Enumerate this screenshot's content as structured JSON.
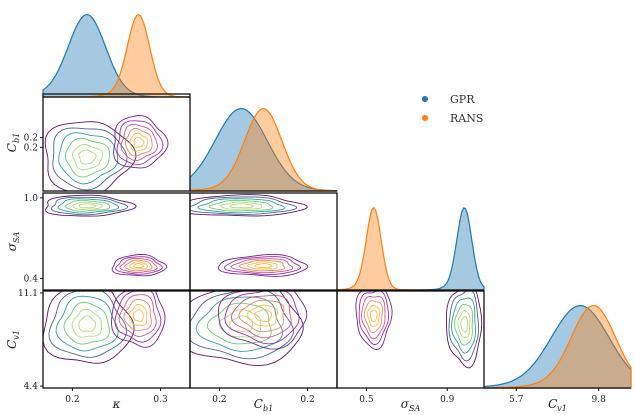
{
  "chart_data": {
    "type": "corner",
    "parameters": [
      {
        "key": "kappa",
        "label": "κ",
        "sub": "",
        "ticks": [
          "0.2",
          "0.3"
        ],
        "range": [
          0.15,
          0.35
        ]
      },
      {
        "key": "cb1",
        "label": "C",
        "sub": "b1",
        "ticks": [
          "0.2",
          "0.2"
        ],
        "range": [
          0.1,
          0.3
        ]
      },
      {
        "key": "sigma",
        "label": "σ",
        "sub": "SA",
        "ticks": [
          "0.5",
          "0.9"
        ],
        "range": [
          0.4,
          1.0
        ]
      },
      {
        "key": "cv1",
        "label": "C",
        "sub": "v1",
        "ticks": [
          "5.7",
          "9.8"
        ],
        "range": [
          4.4,
          11.1
        ]
      }
    ],
    "y_ticks": {
      "cb1": [
        "0.2",
        "0.2"
      ],
      "sigma": [
        "1.0",
        "0.4"
      ],
      "cv1": [
        "11.1",
        "4.4"
      ]
    },
    "series": [
      {
        "name": "GPR",
        "color": "#1f77b4",
        "means": {
          "kappa": 0.21,
          "cb1": 0.17,
          "sigma": 0.92,
          "cv1": 8.8
        },
        "stds": {
          "kappa": 0.025,
          "cb1": 0.035,
          "sigma": 0.03,
          "cv1": 1.3
        }
      },
      {
        "name": "RANS",
        "color": "#ff7f0e",
        "means": {
          "kappa": 0.28,
          "cb1": 0.2,
          "sigma": 0.55,
          "cv1": 9.4
        },
        "stds": {
          "kappa": 0.015,
          "cb1": 0.025,
          "sigma": 0.03,
          "cv1": 1.0
        }
      }
    ],
    "legend": {
      "placement": "upper-right",
      "entries": [
        "GPR",
        "RANS"
      ]
    },
    "colormaps": {
      "GPR": [
        "#440154",
        "#3b528b",
        "#21918c",
        "#5ec962",
        "#a8d86e"
      ],
      "RANS": [
        "#5b0f8f",
        "#9c179e",
        "#cc4778",
        "#ed7953",
        "#fdb42f"
      ]
    },
    "grid": false
  }
}
